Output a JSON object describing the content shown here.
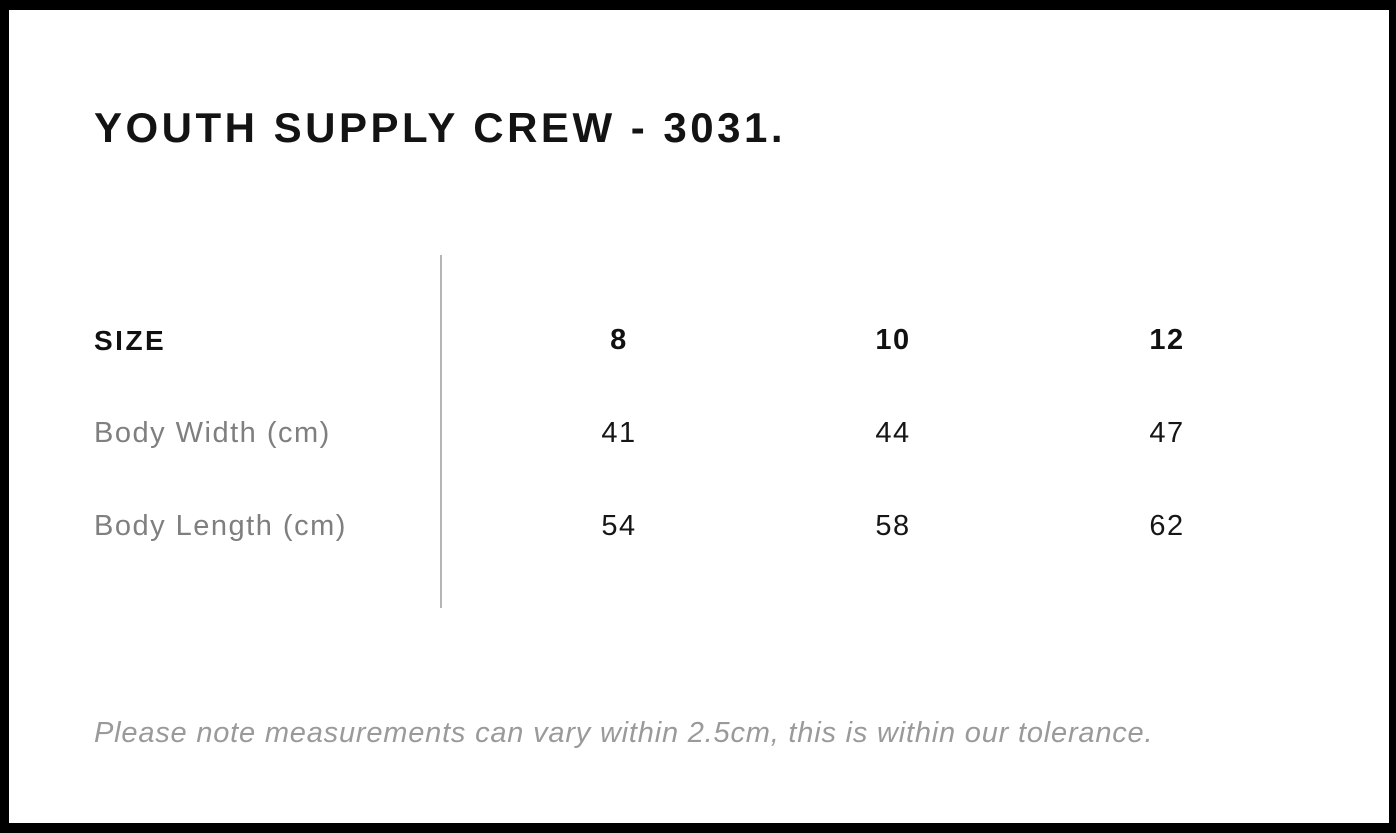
{
  "page": {
    "title": "YOUTH SUPPLY CREW - 3031."
  },
  "size_chart": {
    "header_label": "SIZE",
    "sizes": [
      "8",
      "10",
      "12"
    ],
    "rows": [
      {
        "label": "Body Width (cm)",
        "values": [
          "41",
          "44",
          "47"
        ]
      },
      {
        "label": "Body Length (cm)",
        "values": [
          "54",
          "58",
          "62"
        ]
      }
    ]
  },
  "note": "Please note measurements can vary within 2.5cm, this is within our tolerance.",
  "colors": {
    "page_border": "#000000",
    "background": "#ffffff",
    "heading_text": "#131313",
    "value_text": "#161616",
    "row_label_text": "#7f7f7f",
    "note_text": "#9a9a9a",
    "divider": "#b5b5b5"
  },
  "chart_data": {
    "type": "table",
    "title": "YOUTH SUPPLY CREW - 3031.",
    "columns": [
      "SIZE",
      "8",
      "10",
      "12"
    ],
    "rows": [
      [
        "Body Width (cm)",
        41,
        44,
        47
      ],
      [
        "Body Length (cm)",
        54,
        58,
        62
      ]
    ],
    "footnote": "Please note measurements can vary within 2.5cm, this is within our tolerance."
  }
}
